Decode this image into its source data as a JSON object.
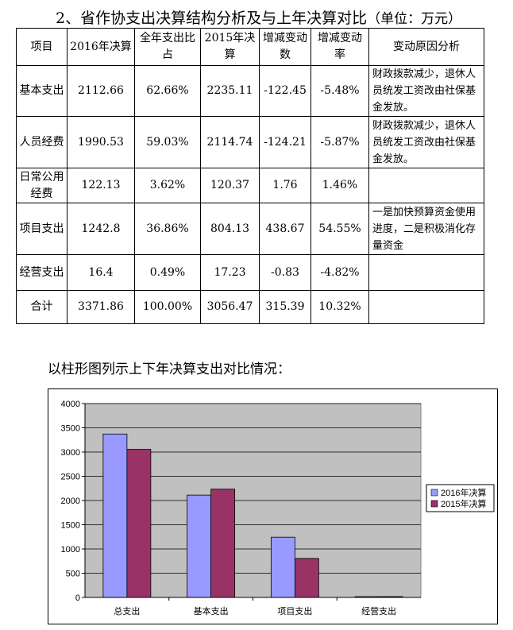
{
  "section": {
    "title": "2、省作协支出决算结构分析及与上年决算对比",
    "unit": "（单位：万元）"
  },
  "table": {
    "headers": [
      "项目",
      "2016年决算",
      "全年支出比占",
      "2015年决算",
      "增减变动数",
      "增减变动率",
      "变动原因分析"
    ],
    "rows": [
      {
        "item": "基本支出",
        "y2016": "2112.66",
        "share": "62.66%",
        "y2015": "2235.11",
        "change": "-122.45",
        "rate": "-5.48%",
        "reason": "财政拨款减少，退休人员统发工资改由社保基金发放。"
      },
      {
        "item": "人员经费",
        "y2016": "1990.53",
        "share": "59.03%",
        "y2015": "2114.74",
        "change": "-124.21",
        "rate": "-5.87%",
        "reason": "财政拨款减少，退休人员统发工资改由社保基金发放。"
      },
      {
        "item": "日常公用经费",
        "y2016": "122.13",
        "share": "3.62%",
        "y2015": "120.37",
        "change": "1.76",
        "rate": "1.46%",
        "reason": ""
      },
      {
        "item": "项目支出",
        "y2016": "1242.8",
        "share": "36.86%",
        "y2015": "804.13",
        "change": "438.67",
        "rate": "54.55%",
        "reason": "一是加快预算资金使用进度，二是积极消化存量资金"
      },
      {
        "item": "经营支出",
        "y2016": "16.4",
        "share": "0.49%",
        "y2015": "17.23",
        "change": "-0.83",
        "rate": "-4.82%",
        "reason": ""
      },
      {
        "item": "合计",
        "y2016": "3371.86",
        "share": "100.00%",
        "y2015": "3056.47",
        "change": "315.39",
        "rate": "10.32%",
        "reason": ""
      }
    ]
  },
  "chart_caption": "以柱形图列示上下年决算支出对比情况：",
  "chart_data": {
    "type": "bar",
    "title": "",
    "xlabel": "",
    "ylabel": "",
    "categories": [
      "总支出",
      "基本支出",
      "项目支出",
      "经营支出"
    ],
    "series": [
      {
        "name": "2016年决算",
        "values": [
          3371.86,
          2112.66,
          1242.8,
          16.4
        ],
        "color": "#9999ff"
      },
      {
        "name": "2015年决算",
        "values": [
          3056.47,
          2235.11,
          804.13,
          17.23
        ],
        "color": "#993366"
      }
    ],
    "ylim": [
      0,
      4000
    ],
    "yticks": [
      0,
      500,
      1000,
      1500,
      2000,
      2500,
      3000,
      3500,
      4000
    ],
    "grid": true,
    "legend": "right",
    "plot_background": "#c0c0c0"
  }
}
